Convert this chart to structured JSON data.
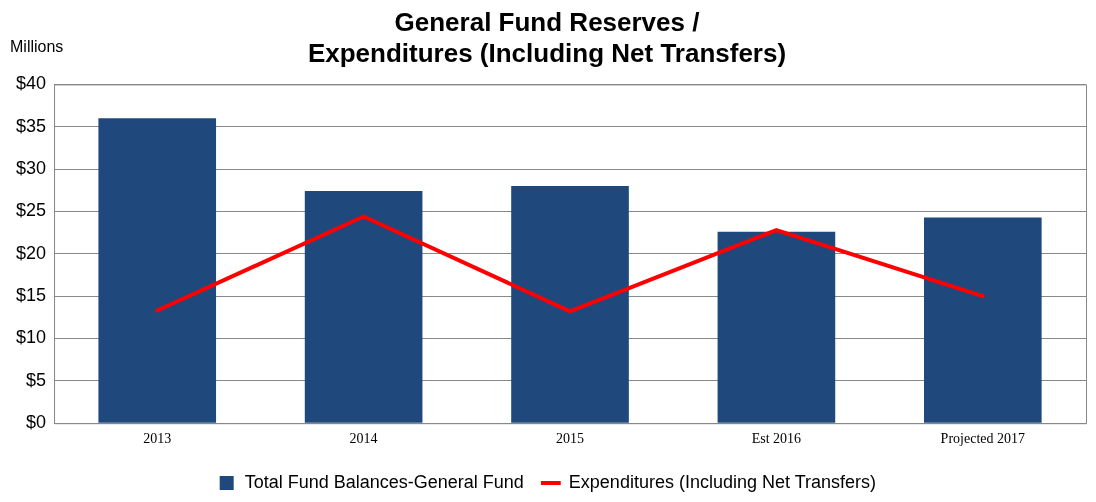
{
  "chart_data": {
    "type": "bar",
    "title": "General Fund Reserves /\nExpenditures (Including Net Transfers)",
    "ylabel": "Millions",
    "categories": [
      "2013",
      "2014",
      "2015",
      "Est 2016",
      "Projected 2017"
    ],
    "series": [
      {
        "name": "Total Fund Balances-General Fund",
        "color": "#1f497d",
        "values": [
          36.0,
          27.4,
          28.0,
          22.6,
          24.3
        ]
      },
      {
        "name": "Expenditures (Including Net Transfers)",
        "type": "line",
        "color": "#ff0000",
        "values": [
          13.3,
          24.4,
          13.2,
          22.8,
          15.0
        ]
      }
    ],
    "ylim": [
      0,
      40
    ],
    "yticks": [
      {
        "value": 0,
        "label": "$0"
      },
      {
        "value": 5,
        "label": "$5"
      },
      {
        "value": 10,
        "label": "$10"
      },
      {
        "value": 15,
        "label": "$15"
      },
      {
        "value": 20,
        "label": "$20"
      },
      {
        "value": 25,
        "label": "$25"
      },
      {
        "value": 30,
        "label": "$30"
      },
      {
        "value": 35,
        "label": "$35"
      },
      {
        "value": 40,
        "label": "$40"
      }
    ],
    "grid": "y",
    "legend": "bottom",
    "marker": "none",
    "line_style": "solid"
  }
}
